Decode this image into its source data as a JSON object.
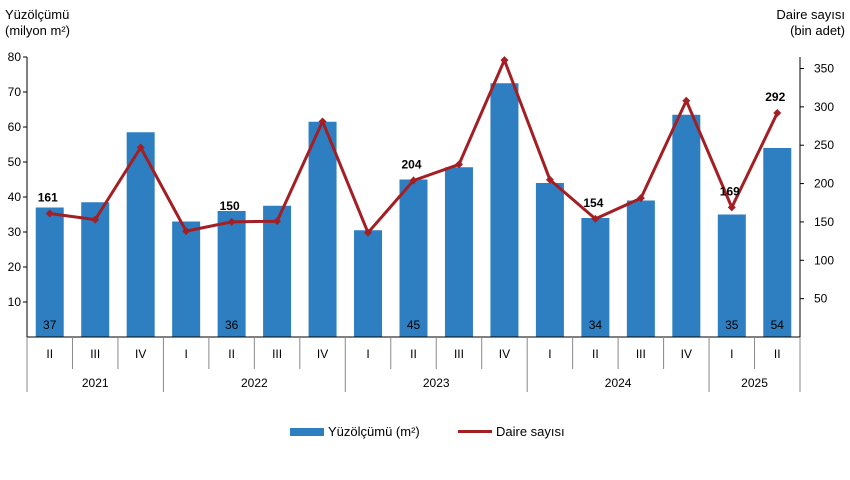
{
  "chart_data": {
    "type": "bar",
    "y_title": [
      "Yüzölçümü",
      "(milyon m²)"
    ],
    "y2_title": [
      "Daire sayısı",
      "(bin adet)"
    ],
    "quarters": [
      "II",
      "III",
      "IV",
      "I",
      "II",
      "III",
      "IV",
      "I",
      "II",
      "III",
      "IV",
      "I",
      "II",
      "III",
      "IV",
      "I",
      "II"
    ],
    "years": [
      {
        "label": "2021",
        "count": 3
      },
      {
        "label": "2022",
        "count": 4
      },
      {
        "label": "2023",
        "count": 4
      },
      {
        "label": "2024",
        "count": 4
      },
      {
        "label": "2025",
        "count": 2
      }
    ],
    "ylim": [
      0,
      80
    ],
    "y_ticks": [
      10,
      20,
      30,
      40,
      50,
      60,
      70,
      80
    ],
    "y2lim": [
      0,
      365
    ],
    "y2_ticks": [
      50,
      100,
      150,
      200,
      250,
      300,
      350
    ],
    "series": [
      {
        "name": "Yüzölçümü (m²)",
        "type": "bar",
        "color": "#2e7fc2",
        "values": [
          37,
          38.5,
          58.5,
          33,
          36,
          37.5,
          61.5,
          30.5,
          45,
          48.5,
          72.5,
          44,
          34,
          39,
          63.5,
          35,
          54
        ],
        "labels": [
          "37",
          "",
          "",
          "",
          "36",
          "",
          "",
          "",
          "45",
          "",
          "",
          "",
          "34",
          "",
          "",
          "35",
          "54"
        ]
      },
      {
        "name": "Daire sayısı",
        "type": "line",
        "color": "#a31f24",
        "axis": "right",
        "values": [
          161,
          153,
          247,
          138,
          150,
          151,
          281,
          136,
          204,
          225,
          361,
          205,
          154,
          181,
          308,
          169,
          292
        ],
        "labels": [
          "161",
          "",
          "",
          "",
          "150",
          "",
          "",
          "",
          "204",
          "",
          "",
          "",
          "154",
          "",
          "",
          "169",
          "292"
        ]
      }
    ],
    "legend_position": "bottom",
    "grid": false
  }
}
